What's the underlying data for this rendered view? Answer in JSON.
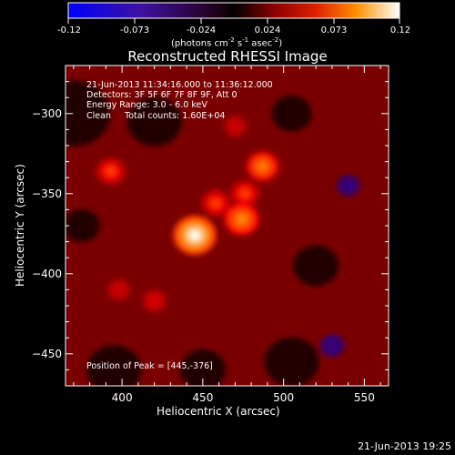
{
  "colorbar": {
    "ticks": [
      "-0.12",
      "-0.073",
      "-0.024",
      "0.024",
      "0.073",
      "0.12"
    ],
    "units_text": "(photons cm",
    "units_exp1": "-2",
    "units_mid": " s",
    "units_exp2": "-1",
    "units_tail": " asec",
    "units_exp3": "-2",
    "units_close": ")"
  },
  "title": "Reconstructed RHESSI Image",
  "info_lines": [
    "21-Jun-2013 11:34:16.000 to 11:36:12.000",
    "Detectors: 3F 5F 6F 7F 8F 9F, Att 0",
    "Energy Range: 3.0 - 6.0 keV",
    "Clean     Total counts: 1.60E+04"
  ],
  "peak_text": "Position of Peak = [445,-376]",
  "timestamp": "21-Jun-2013 19:25",
  "chart_data": {
    "type": "heatmap",
    "title": "Reconstructed RHESSI Image",
    "xlabel": "Heliocentric X (arcsec)",
    "ylabel": "Heliocentric Y (arcsec)",
    "xlim": [
      365,
      565
    ],
    "ylim": [
      -470,
      -270
    ],
    "x_ticks": [
      400,
      450,
      500,
      550
    ],
    "y_ticks": [
      -300,
      -350,
      -400,
      -450
    ],
    "color_range": [
      -0.12,
      0.12
    ],
    "peak": {
      "x": 445,
      "y": -376
    },
    "sources": [
      {
        "x": 445,
        "y": -376,
        "intensity": 0.12
      },
      {
        "x": 474,
        "y": -366,
        "intensity": 0.085
      },
      {
        "x": 487,
        "y": -333,
        "intensity": 0.08
      },
      {
        "x": 458,
        "y": -356,
        "intensity": 0.06
      },
      {
        "x": 476,
        "y": -350,
        "intensity": 0.06
      },
      {
        "x": 393,
        "y": -336,
        "intensity": 0.06
      },
      {
        "x": 420,
        "y": -417,
        "intensity": 0.04
      },
      {
        "x": 398,
        "y": -410,
        "intensity": 0.035
      },
      {
        "x": 470,
        "y": -308,
        "intensity": 0.035
      }
    ],
    "negative_regions": [
      {
        "x": 540,
        "y": -345,
        "intensity": -0.035
      },
      {
        "x": 530,
        "y": -445,
        "intensity": -0.04
      }
    ]
  }
}
